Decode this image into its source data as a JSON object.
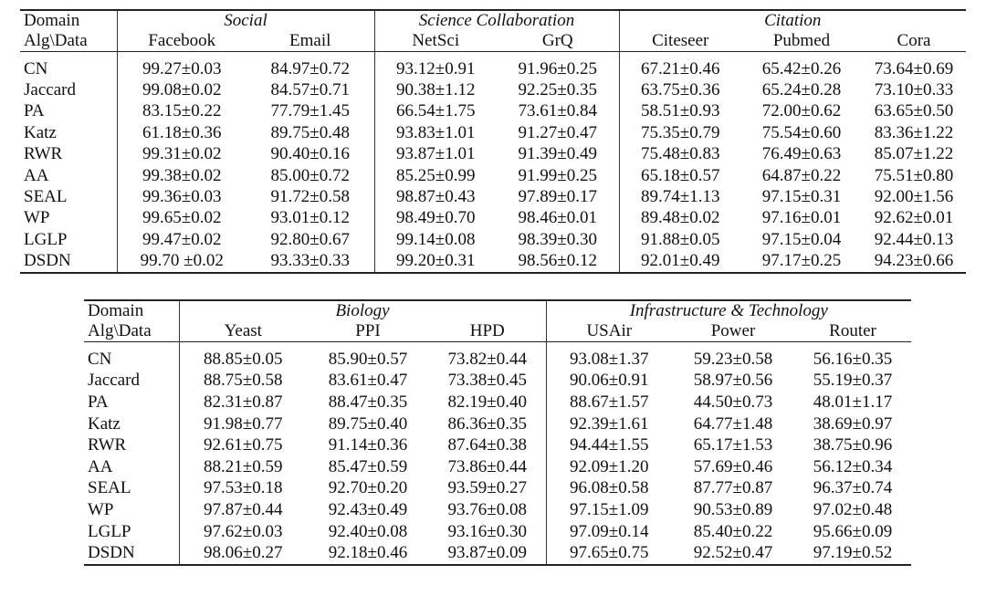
{
  "table1": {
    "header_domain": "Domain",
    "header_alg": "Alg\\Data",
    "groups": [
      "Social",
      "Science Collaboration",
      "Citation"
    ],
    "datasets": [
      "Facebook",
      "Email",
      "NetSci",
      "GrQ",
      "Citeseer",
      "Pubmed",
      "Cora"
    ],
    "rows": [
      {
        "alg": "CN",
        "vals": [
          "99.27±0.03",
          "84.97±0.72",
          "93.12±0.91",
          "91.96±0.25",
          "67.21±0.46",
          "65.42±0.26",
          "73.64±0.69"
        ],
        "bold": []
      },
      {
        "alg": "Jaccard",
        "vals": [
          "99.08±0.02",
          "84.57±0.71",
          "90.38±1.12",
          "92.25±0.35",
          "63.75±0.36",
          "65.24±0.28",
          "73.10±0.33"
        ],
        "bold": []
      },
      {
        "alg": "PA",
        "vals": [
          "83.15±0.22",
          "77.79±1.45",
          "66.54±1.75",
          "73.61±0.84",
          "58.51±0.93",
          "72.00±0.62",
          "63.65±0.50"
        ],
        "bold": []
      },
      {
        "alg": "Katz",
        "vals": [
          "61.18±0.36",
          "89.75±0.48",
          "93.83±1.01",
          "91.27±0.47",
          "75.35±0.79",
          "75.54±0.60",
          "83.36±1.22"
        ],
        "bold": []
      },
      {
        "alg": "RWR",
        "vals": [
          "99.31±0.02",
          "90.40±0.16",
          "93.87±1.01",
          "91.39±0.49",
          "75.48±0.83",
          "76.49±0.63",
          "85.07±1.22"
        ],
        "bold": []
      },
      {
        "alg": "AA",
        "vals": [
          "99.38±0.02",
          "85.00±0.72",
          "85.25±0.99",
          "91.99±0.25",
          "65.18±0.57",
          "64.87±0.22",
          "75.51±0.80"
        ],
        "bold": []
      },
      {
        "alg": "SEAL",
        "vals": [
          "99.36±0.03",
          "91.72±0.58",
          "98.87±0.43",
          "97.89±0.17",
          "89.74±1.13",
          "97.15±0.31",
          "92.00±1.56"
        ],
        "bold": [
          5
        ]
      },
      {
        "alg": "WP",
        "vals": [
          "99.65±0.02",
          "93.01±0.12",
          "98.49±0.70",
          "98.46±0.01",
          "89.48±0.02",
          "97.16±0.01",
          "92.62±0.01"
        ],
        "bold": [
          5
        ]
      },
      {
        "alg": "LGLP",
        "vals": [
          "99.47±0.02",
          "92.80±0.67",
          "99.14±0.08",
          "98.39±0.30",
          "91.88±0.05",
          "97.15±0.04",
          "92.44±0.13"
        ],
        "bold": [
          5
        ]
      },
      {
        "alg": "DSDN",
        "vals": [
          "99.70 ±0.02",
          "93.33±0.33",
          "99.20±0.31",
          "98.56±0.12",
          "92.01±0.49",
          "97.17±0.25",
          "94.23±0.66"
        ],
        "bold": [
          0,
          1,
          2,
          3,
          4,
          5,
          6
        ]
      }
    ]
  },
  "table2": {
    "header_domain": "Domain",
    "header_alg": "Alg\\Data",
    "groups": [
      "Biology",
      "Infrastructure & Technology"
    ],
    "datasets": [
      "Yeast",
      "PPI",
      "HPD",
      "USAir",
      "Power",
      "Router"
    ],
    "rows": [
      {
        "alg": "CN",
        "vals": [
          "88.85±0.05",
          "85.90±0.57",
          "73.82±0.44",
          "93.08±1.37",
          "59.23±0.58",
          "56.16±0.35"
        ],
        "bold": []
      },
      {
        "alg": "Jaccard",
        "vals": [
          "88.75±0.58",
          "83.61±0.47",
          "73.38±0.45",
          "90.06±0.91",
          "58.97±0.56",
          "55.19±0.37"
        ],
        "bold": []
      },
      {
        "alg": "PA",
        "vals": [
          "82.31±0.87",
          "88.47±0.35",
          "82.19±0.40",
          "88.67±1.57",
          "44.50±0.73",
          "48.01±1.17"
        ],
        "bold": []
      },
      {
        "alg": "Katz",
        "vals": [
          "91.98±0.77",
          "89.75±0.40",
          "86.36±0.35",
          "92.39±1.61",
          "64.77±1.48",
          "38.69±0.97"
        ],
        "bold": []
      },
      {
        "alg": "RWR",
        "vals": [
          "92.61±0.75",
          "91.14±0.36",
          "87.64±0.38",
          "94.44±1.55",
          "65.17±1.53",
          "38.75±0.96"
        ],
        "bold": []
      },
      {
        "alg": "AA",
        "vals": [
          "88.21±0.59",
          "85.47±0.59",
          "73.86±0.44",
          "92.09±1.20",
          "57.69±0.46",
          "56.12±0.34"
        ],
        "bold": []
      },
      {
        "alg": "SEAL",
        "vals": [
          "97.53±0.18",
          "92.70±0.20",
          "93.59±0.27",
          "96.08±0.58",
          "87.77±0.87",
          "96.37±0.74"
        ],
        "bold": [
          1
        ]
      },
      {
        "alg": "WP",
        "vals": [
          "97.87±0.44",
          "92.43±0.49",
          "93.76±0.08",
          "97.15±1.09",
          "90.53±0.89",
          "97.02±0.48"
        ],
        "bold": []
      },
      {
        "alg": "LGLP",
        "vals": [
          "97.62±0.03",
          "92.40±0.08",
          "93.16±0.30",
          "97.09±0.14",
          "85.40±0.22",
          "95.66±0.09"
        ],
        "bold": []
      },
      {
        "alg": "DSDN",
        "vals": [
          "98.06±0.27",
          "92.18±0.46",
          "93.87±0.09",
          "97.65±0.75",
          "92.52±0.47",
          "97.19±0.52"
        ],
        "bold": [
          0,
          2,
          3,
          4,
          5
        ]
      }
    ]
  }
}
